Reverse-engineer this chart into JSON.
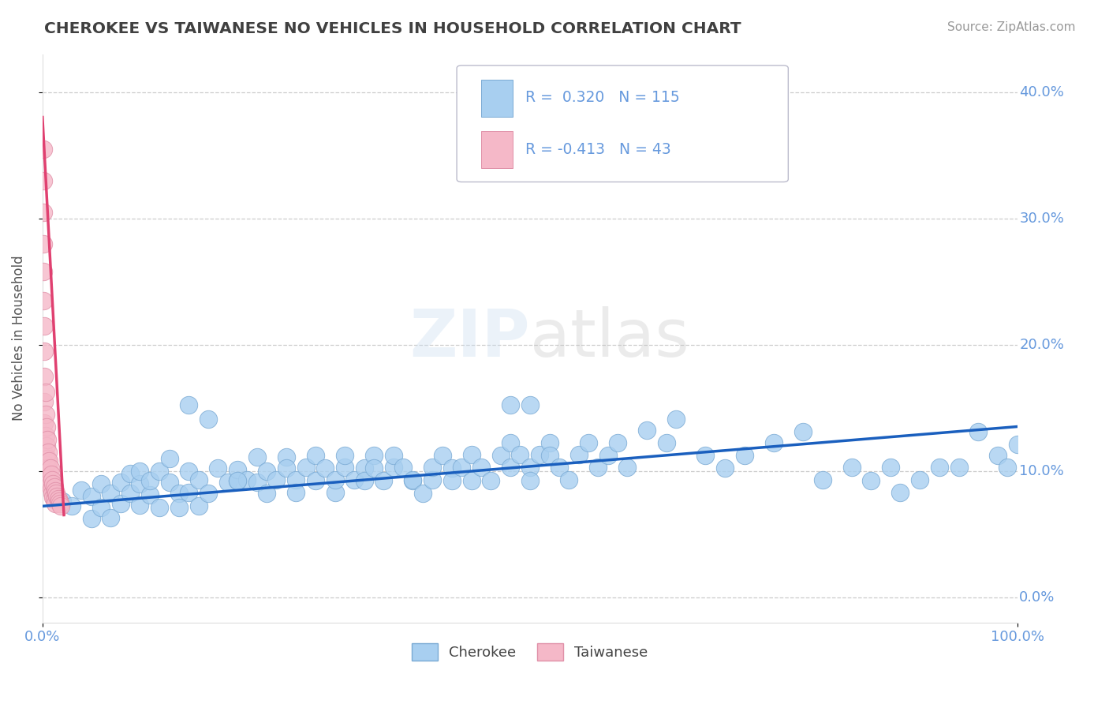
{
  "title": "CHEROKEE VS TAIWANESE NO VEHICLES IN HOUSEHOLD CORRELATION CHART",
  "source": "Source: ZipAtlas.com",
  "ylabel_label": "No Vehicles in Household",
  "xlim": [
    0.0,
    1.0
  ],
  "ylim": [
    -0.02,
    0.43
  ],
  "watermark": "ZIPatlas",
  "cherokee_R": "0.320",
  "cherokee_N": "115",
  "taiwanese_R": "-0.413",
  "taiwanese_N": "43",
  "cherokee_color": "#A8CFF0",
  "cherokee_edge": "#7AAAD4",
  "taiwanese_color": "#F5B8C8",
  "taiwanese_edge": "#E090A8",
  "trendline_cherokee": "#1A5FBE",
  "trendline_taiwanese": "#E04070",
  "background_color": "#FFFFFF",
  "grid_color": "#CCCCCC",
  "title_color": "#404040",
  "axis_tick_color": "#6699DD",
  "cherokee_x": [
    0.02,
    0.03,
    0.04,
    0.05,
    0.05,
    0.06,
    0.06,
    0.07,
    0.07,
    0.08,
    0.08,
    0.09,
    0.09,
    0.1,
    0.1,
    0.1,
    0.11,
    0.11,
    0.12,
    0.12,
    0.13,
    0.13,
    0.14,
    0.14,
    0.15,
    0.15,
    0.16,
    0.16,
    0.17,
    0.18,
    0.19,
    0.2,
    0.2,
    0.21,
    0.22,
    0.22,
    0.23,
    0.23,
    0.24,
    0.25,
    0.25,
    0.26,
    0.26,
    0.27,
    0.28,
    0.28,
    0.29,
    0.3,
    0.3,
    0.31,
    0.31,
    0.32,
    0.33,
    0.33,
    0.34,
    0.34,
    0.35,
    0.36,
    0.36,
    0.37,
    0.38,
    0.38,
    0.39,
    0.4,
    0.4,
    0.41,
    0.42,
    0.42,
    0.43,
    0.44,
    0.44,
    0.45,
    0.46,
    0.47,
    0.48,
    0.48,
    0.49,
    0.5,
    0.5,
    0.51,
    0.52,
    0.52,
    0.53,
    0.54,
    0.55,
    0.56,
    0.57,
    0.58,
    0.59,
    0.6,
    0.62,
    0.64,
    0.65,
    0.68,
    0.7,
    0.72,
    0.75,
    0.78,
    0.8,
    0.83,
    0.85,
    0.87,
    0.88,
    0.9,
    0.92,
    0.94,
    0.96,
    0.98,
    0.99,
    1.0,
    0.15,
    0.17,
    0.2,
    0.48,
    0.5
  ],
  "cherokee_y": [
    0.076,
    0.072,
    0.085,
    0.062,
    0.08,
    0.071,
    0.09,
    0.063,
    0.082,
    0.074,
    0.091,
    0.098,
    0.082,
    0.09,
    0.073,
    0.1,
    0.081,
    0.092,
    0.1,
    0.071,
    0.091,
    0.11,
    0.082,
    0.071,
    0.1,
    0.083,
    0.093,
    0.072,
    0.082,
    0.102,
    0.091,
    0.092,
    0.101,
    0.093,
    0.111,
    0.091,
    0.1,
    0.082,
    0.093,
    0.111,
    0.102,
    0.093,
    0.083,
    0.103,
    0.112,
    0.092,
    0.102,
    0.083,
    0.093,
    0.103,
    0.112,
    0.093,
    0.102,
    0.092,
    0.112,
    0.102,
    0.092,
    0.103,
    0.112,
    0.103,
    0.092,
    0.093,
    0.082,
    0.093,
    0.103,
    0.112,
    0.102,
    0.092,
    0.103,
    0.092,
    0.113,
    0.103,
    0.092,
    0.112,
    0.103,
    0.122,
    0.113,
    0.103,
    0.092,
    0.113,
    0.122,
    0.112,
    0.103,
    0.093,
    0.113,
    0.122,
    0.103,
    0.112,
    0.122,
    0.103,
    0.132,
    0.122,
    0.141,
    0.112,
    0.102,
    0.112,
    0.122,
    0.131,
    0.093,
    0.103,
    0.092,
    0.103,
    0.083,
    0.093,
    0.103,
    0.103,
    0.131,
    0.112,
    0.103,
    0.121,
    0.152,
    0.141,
    0.092,
    0.152,
    0.152
  ],
  "taiwanese_x": [
    0.001,
    0.001,
    0.001,
    0.001,
    0.001,
    0.001,
    0.002,
    0.002,
    0.002,
    0.002,
    0.002,
    0.003,
    0.003,
    0.003,
    0.003,
    0.004,
    0.004,
    0.004,
    0.005,
    0.005,
    0.005,
    0.006,
    0.006,
    0.007,
    0.007,
    0.008,
    0.008,
    0.009,
    0.009,
    0.01,
    0.01,
    0.011,
    0.011,
    0.012,
    0.012,
    0.013,
    0.013,
    0.014,
    0.015,
    0.016,
    0.017,
    0.018,
    0.019
  ],
  "taiwanese_y": [
    0.355,
    0.33,
    0.305,
    0.28,
    0.258,
    0.235,
    0.215,
    0.195,
    0.175,
    0.155,
    0.138,
    0.162,
    0.145,
    0.128,
    0.112,
    0.135,
    0.12,
    0.105,
    0.125,
    0.11,
    0.096,
    0.115,
    0.102,
    0.108,
    0.095,
    0.102,
    0.09,
    0.097,
    0.086,
    0.093,
    0.082,
    0.09,
    0.079,
    0.087,
    0.077,
    0.084,
    0.074,
    0.082,
    0.08,
    0.078,
    0.076,
    0.074,
    0.072
  ],
  "cherokee_trendline_x": [
    0.0,
    1.0
  ],
  "cherokee_trendline_y": [
    0.072,
    0.135
  ],
  "taiwanese_trendline_x": [
    0.0,
    0.022
  ],
  "taiwanese_trendline_y": [
    0.38,
    0.065
  ]
}
